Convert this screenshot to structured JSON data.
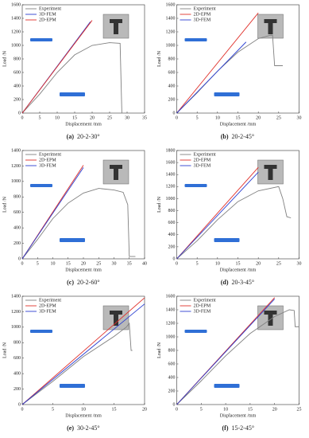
{
  "chart_data": [
    {
      "type": "line",
      "panel_label": "(a)",
      "caption": "20-2-30°",
      "xlabel": "Displacement /mm",
      "ylabel": "Load /N",
      "xlim": [
        0,
        35
      ],
      "xticks": [
        0,
        5,
        10,
        15,
        20,
        25,
        30,
        35
      ],
      "ylim": [
        0,
        1600
      ],
      "yticks": [
        0,
        200,
        400,
        600,
        800,
        1000,
        1200,
        1400,
        1600
      ],
      "series": [
        {
          "name": "Experiment",
          "color": "#808080",
          "x": [
            0,
            5,
            10,
            15,
            20,
            25,
            28,
            28.5
          ],
          "values": [
            0,
            280,
            600,
            860,
            1000,
            1040,
            1030,
            0
          ]
        },
        {
          "name": "3D-FEM",
          "color": "#2b3fd1",
          "x": [
            0,
            19.5
          ],
          "values": [
            0,
            1350
          ]
        },
        {
          "name": "2D-EPM",
          "color": "#e0302a",
          "x": [
            0,
            20
          ],
          "values": [
            0,
            1370
          ]
        }
      ]
    },
    {
      "type": "line",
      "panel_label": "(b)",
      "caption": "20-2-45°",
      "xlabel": "Displacement /mm",
      "ylabel": "Load /N",
      "xlim": [
        0,
        30
      ],
      "xticks": [
        0,
        5,
        10,
        15,
        20,
        25,
        30
      ],
      "ylim": [
        0,
        1600
      ],
      "yticks": [
        0,
        200,
        400,
        600,
        800,
        1000,
        1200,
        1400,
        1600
      ],
      "series": [
        {
          "name": "Experiment",
          "color": "#808080",
          "x": [
            0,
            5,
            10,
            15,
            20,
            23,
            23.5,
            24,
            26
          ],
          "values": [
            0,
            300,
            620,
            900,
            1100,
            1150,
            1150,
            700,
            700
          ]
        },
        {
          "name": "2D-EPM",
          "color": "#e0302a",
          "x": [
            0,
            20
          ],
          "values": [
            0,
            1480
          ]
        },
        {
          "name": "3D-FEM",
          "color": "#2b3fd1",
          "x": [
            0,
            17
          ],
          "values": [
            0,
            1050
          ]
        }
      ]
    },
    {
      "type": "line",
      "panel_label": "(c)",
      "caption": "20-2-60°",
      "xlabel": "Displacement /mm",
      "ylabel": "Load /N",
      "xlim": [
        0,
        40
      ],
      "xticks": [
        0,
        5,
        10,
        15,
        20,
        25,
        30,
        35,
        40
      ],
      "ylim": [
        0,
        1400
      ],
      "yticks": [
        0,
        200,
        400,
        600,
        800,
        1000,
        1200,
        1400
      ],
      "series": [
        {
          "name": "Experiment",
          "color": "#808080",
          "x": [
            0,
            5,
            10,
            15,
            20,
            25,
            30,
            33,
            34.5,
            35,
            37
          ],
          "values": [
            0,
            250,
            520,
            720,
            850,
            910,
            890,
            860,
            700,
            30,
            30
          ]
        },
        {
          "name": "2D-EPM",
          "color": "#e0302a",
          "x": [
            0,
            20
          ],
          "values": [
            0,
            1210
          ]
        },
        {
          "name": "3D-FEM",
          "color": "#2b3fd1",
          "x": [
            0,
            20
          ],
          "values": [
            0,
            1180
          ]
        }
      ]
    },
    {
      "type": "line",
      "panel_label": "(d)",
      "caption": "20-3-45°",
      "xlabel": "Displacement /mm",
      "ylabel": "Load /N",
      "xlim": [
        0,
        30
      ],
      "xticks": [
        0,
        5,
        10,
        15,
        20,
        25,
        30
      ],
      "ylim": [
        0,
        1800
      ],
      "yticks": [
        0,
        200,
        400,
        600,
        800,
        1000,
        1200,
        1400,
        1600,
        1800
      ],
      "series": [
        {
          "name": "Experiment",
          "color": "#808080",
          "x": [
            0,
            5,
            10,
            15,
            20,
            25,
            26,
            27,
            28
          ],
          "values": [
            0,
            300,
            650,
            950,
            1130,
            1200,
            1000,
            700,
            680
          ]
        },
        {
          "name": "2D-EPM",
          "color": "#e0302a",
          "x": [
            0,
            20
          ],
          "values": [
            0,
            1520
          ]
        },
        {
          "name": "3D-FEM",
          "color": "#2b3fd1",
          "x": [
            0,
            20
          ],
          "values": [
            0,
            1440
          ]
        }
      ]
    },
    {
      "type": "line",
      "panel_label": "(e)",
      "caption": "30-2-45°",
      "xlabel": "Displacement /mm",
      "ylabel": "Load /N",
      "xlim": [
        0,
        20
      ],
      "xticks": [
        0,
        5,
        10,
        15,
        20
      ],
      "ylim": [
        0,
        1400
      ],
      "yticks": [
        0,
        200,
        400,
        600,
        800,
        1000,
        1200,
        1400
      ],
      "series": [
        {
          "name": "Experiment",
          "color": "#808080",
          "x": [
            0,
            5,
            10,
            15,
            17,
            17.5,
            17.8,
            18
          ],
          "values": [
            0,
            300,
            620,
            880,
            1000,
            1050,
            700,
            700
          ]
        },
        {
          "name": "2D-EPM",
          "color": "#e0302a",
          "x": [
            0,
            20
          ],
          "values": [
            0,
            1380
          ]
        },
        {
          "name": "3D-FEM",
          "color": "#2b3fd1",
          "x": [
            0,
            20
          ],
          "values": [
            0,
            1300
          ]
        }
      ]
    },
    {
      "type": "line",
      "panel_label": "(f)",
      "caption": "15-2-45°",
      "xlabel": "Displacement /mm",
      "ylabel": "Load /N",
      "xlim": [
        0,
        25
      ],
      "xticks": [
        0,
        5,
        10,
        15,
        20,
        25
      ],
      "ylim": [
        0,
        1600
      ],
      "yticks": [
        0,
        200,
        400,
        600,
        800,
        1000,
        1200,
        1400,
        1600
      ],
      "series": [
        {
          "name": "Experiment",
          "color": "#808080",
          "x": [
            0,
            5,
            10,
            15,
            20,
            23,
            24,
            24.2,
            25
          ],
          "values": [
            0,
            350,
            720,
            1050,
            1300,
            1400,
            1390,
            1150,
            1150
          ]
        },
        {
          "name": "2D-EPM",
          "color": "#e0302a",
          "x": [
            0,
            20
          ],
          "values": [
            0,
            1580
          ]
        },
        {
          "name": "3D-FEM",
          "color": "#2b3fd1",
          "x": [
            0,
            20
          ],
          "values": [
            0,
            1560
          ]
        }
      ]
    }
  ]
}
